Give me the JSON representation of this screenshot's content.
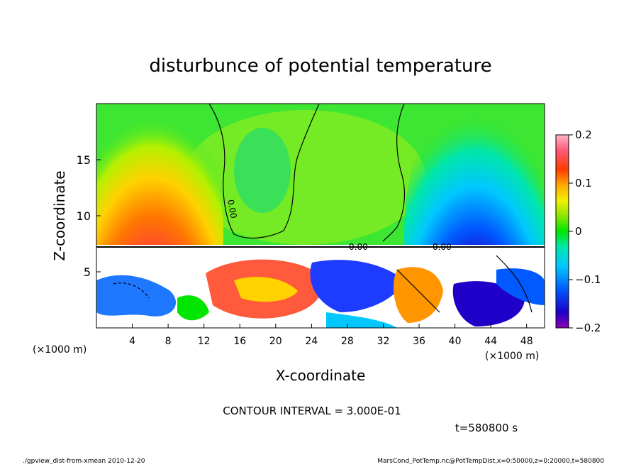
{
  "chart_data": {
    "type": "heatmap",
    "title": "disturbunce of potential temperature",
    "xlabel": "X-coordinate",
    "ylabel": "Z-coordinate",
    "x_unit_left": "(×1000 m)",
    "x_unit_right": "(×1000 m)",
    "xlim": [
      0,
      50
    ],
    "ylim": [
      0,
      20
    ],
    "x_ticks": [
      4,
      8,
      12,
      16,
      20,
      24,
      28,
      32,
      36,
      40,
      44,
      48
    ],
    "y_ticks": [
      5,
      10,
      15
    ],
    "colorbar": {
      "range": [
        -0.2,
        0.2
      ],
      "tick_values": [
        0.2,
        0.1,
        0,
        -0.1,
        -0.2
      ],
      "tick_labels": [
        "0.2",
        "0.1",
        "0",
        "−0.1",
        "−0.2"
      ]
    },
    "contour_labels": [
      "0.00",
      "0.00",
      "0.00"
    ],
    "contour_interval_text": "CONTOUR INTERVAL = 3.000E-01",
    "time_text": "t=580800 s",
    "footer_left": "./gpview_dist-from-xmean  2010-12-20",
    "footer_right": "MarsCond_PotTemp.nc@PotTempDist,x=0:50000,z=0:20000,t=580800"
  }
}
